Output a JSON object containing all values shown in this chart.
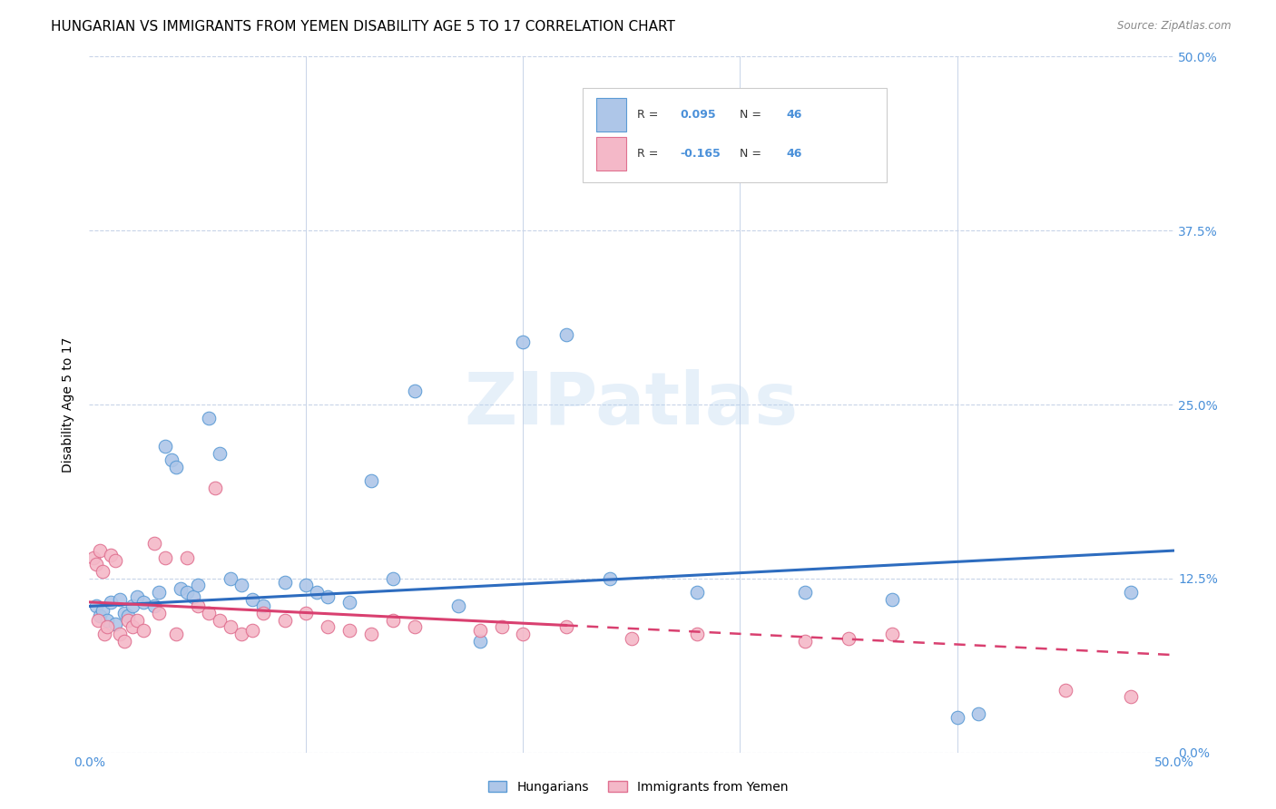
{
  "title": "HUNGARIAN VS IMMIGRANTS FROM YEMEN DISABILITY AGE 5 TO 17 CORRELATION CHART",
  "source": "Source: ZipAtlas.com",
  "ylabel": "Disability Age 5 to 17",
  "ytick_labels": [
    "0.0%",
    "12.5%",
    "25.0%",
    "37.5%",
    "50.0%"
  ],
  "ytick_values": [
    0.0,
    12.5,
    25.0,
    37.5,
    50.0
  ],
  "xlim": [
    0.0,
    50.0
  ],
  "ylim": [
    0.0,
    50.0
  ],
  "blue_scatter": [
    [
      0.3,
      10.5
    ],
    [
      0.5,
      9.8
    ],
    [
      0.6,
      10.2
    ],
    [
      0.8,
      9.5
    ],
    [
      1.0,
      10.8
    ],
    [
      1.2,
      9.2
    ],
    [
      1.4,
      11.0
    ],
    [
      1.6,
      10.0
    ],
    [
      1.8,
      9.8
    ],
    [
      2.0,
      10.5
    ],
    [
      2.2,
      11.2
    ],
    [
      2.5,
      10.8
    ],
    [
      3.0,
      10.5
    ],
    [
      3.2,
      11.5
    ],
    [
      3.5,
      22.0
    ],
    [
      3.8,
      21.0
    ],
    [
      4.0,
      20.5
    ],
    [
      4.2,
      11.8
    ],
    [
      4.5,
      11.5
    ],
    [
      4.8,
      11.2
    ],
    [
      5.0,
      12.0
    ],
    [
      5.5,
      24.0
    ],
    [
      6.0,
      21.5
    ],
    [
      6.5,
      12.5
    ],
    [
      7.0,
      12.0
    ],
    [
      7.5,
      11.0
    ],
    [
      8.0,
      10.5
    ],
    [
      9.0,
      12.2
    ],
    [
      10.0,
      12.0
    ],
    [
      10.5,
      11.5
    ],
    [
      11.0,
      11.2
    ],
    [
      12.0,
      10.8
    ],
    [
      13.0,
      19.5
    ],
    [
      14.0,
      12.5
    ],
    [
      15.0,
      26.0
    ],
    [
      17.0,
      10.5
    ],
    [
      18.0,
      8.0
    ],
    [
      20.0,
      29.5
    ],
    [
      22.0,
      30.0
    ],
    [
      24.0,
      12.5
    ],
    [
      28.0,
      11.5
    ],
    [
      33.0,
      11.5
    ],
    [
      37.0,
      11.0
    ],
    [
      40.0,
      2.5
    ],
    [
      41.0,
      2.8
    ],
    [
      48.0,
      11.5
    ]
  ],
  "pink_scatter": [
    [
      0.2,
      14.0
    ],
    [
      0.3,
      13.5
    ],
    [
      0.4,
      9.5
    ],
    [
      0.5,
      14.5
    ],
    [
      0.6,
      13.0
    ],
    [
      0.7,
      8.5
    ],
    [
      0.8,
      9.0
    ],
    [
      1.0,
      14.2
    ],
    [
      1.2,
      13.8
    ],
    [
      1.4,
      8.5
    ],
    [
      1.6,
      8.0
    ],
    [
      1.8,
      9.5
    ],
    [
      2.0,
      9.0
    ],
    [
      2.2,
      9.5
    ],
    [
      2.5,
      8.8
    ],
    [
      3.0,
      15.0
    ],
    [
      3.2,
      10.0
    ],
    [
      3.5,
      14.0
    ],
    [
      4.0,
      8.5
    ],
    [
      4.5,
      14.0
    ],
    [
      5.0,
      10.5
    ],
    [
      5.5,
      10.0
    ],
    [
      5.8,
      19.0
    ],
    [
      6.0,
      9.5
    ],
    [
      6.5,
      9.0
    ],
    [
      7.0,
      8.5
    ],
    [
      7.5,
      8.8
    ],
    [
      8.0,
      10.0
    ],
    [
      9.0,
      9.5
    ],
    [
      10.0,
      10.0
    ],
    [
      11.0,
      9.0
    ],
    [
      12.0,
      8.8
    ],
    [
      13.0,
      8.5
    ],
    [
      14.0,
      9.5
    ],
    [
      15.0,
      9.0
    ],
    [
      18.0,
      8.8
    ],
    [
      19.0,
      9.0
    ],
    [
      20.0,
      8.5
    ],
    [
      22.0,
      9.0
    ],
    [
      25.0,
      8.2
    ],
    [
      28.0,
      8.5
    ],
    [
      33.0,
      8.0
    ],
    [
      35.0,
      8.2
    ],
    [
      37.0,
      8.5
    ],
    [
      45.0,
      4.5
    ],
    [
      48.0,
      4.0
    ]
  ],
  "blue_line_x": [
    0.0,
    50.0
  ],
  "blue_line_y": [
    10.5,
    14.5
  ],
  "pink_line_x": [
    0.0,
    50.0
  ],
  "pink_line_y": [
    10.8,
    7.0
  ],
  "scatter_color_blue": "#aec6e8",
  "scatter_edge_blue": "#5b9bd5",
  "scatter_color_pink": "#f4b8c8",
  "scatter_edge_pink": "#e07090",
  "line_color_blue": "#2d6cbf",
  "line_color_pink": "#d94070",
  "watermark_text": "ZIPatlas",
  "watermark_color": "#b8d4f0",
  "bg_color": "#ffffff",
  "grid_color": "#c8d4e8",
  "axis_tick_color": "#4a90d9",
  "title_fontsize": 11,
  "tick_fontsize": 10,
  "ylabel_fontsize": 10,
  "legend_r1": "R =  0.095   N = 46",
  "legend_r2": "R = -0.165   N = 46",
  "legend_bottom_1": "Hungarians",
  "legend_bottom_2": "Immigrants from Yemen"
}
